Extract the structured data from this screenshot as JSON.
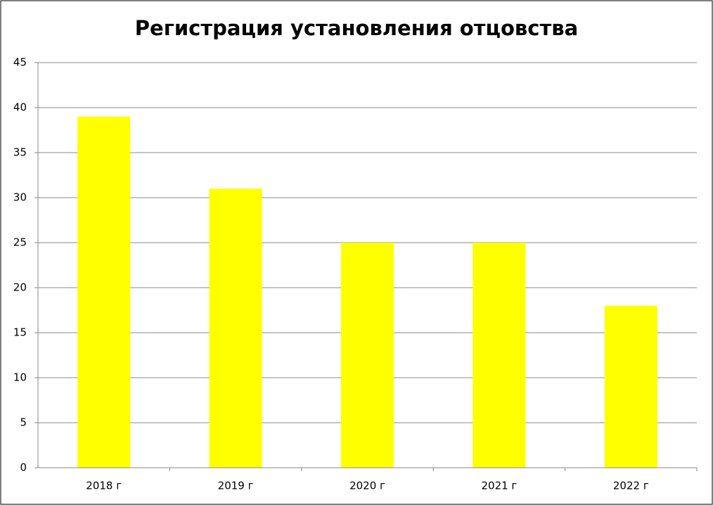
{
  "chart_data": {
    "type": "bar",
    "title": "Регистрация установления отцовства",
    "categories": [
      "2018 г",
      "2019 г",
      "2020 г",
      "2021 г",
      "2022 г"
    ],
    "values": [
      39,
      31,
      25,
      25,
      18
    ],
    "color": "#ffff00",
    "ylim": [
      0,
      45
    ],
    "yticks": [
      0,
      5,
      10,
      15,
      20,
      25,
      30,
      35,
      40,
      45
    ],
    "grid": true
  }
}
